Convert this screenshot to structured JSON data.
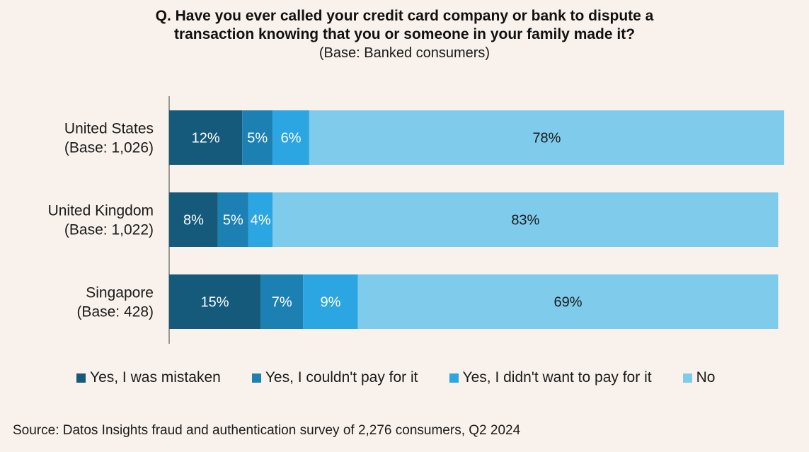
{
  "chart_data": {
    "type": "bar",
    "orientation": "horizontal",
    "stacked": true,
    "title_lines": [
      "Q. Have you ever called your credit card company or bank to dispute a",
      "transaction knowing that you or someone in your family made it?"
    ],
    "subtitle": "(Base: Banked consumers)",
    "categories": [
      {
        "name": "United States",
        "base": "(Base: 1,026)"
      },
      {
        "name": "United Kingdom",
        "base": "(Base: 1,022)"
      },
      {
        "name": "Singapore",
        "base": "(Base: 428)"
      }
    ],
    "series": [
      {
        "name": "Yes, I was mistaken",
        "color": "#155a7a",
        "values": [
          12,
          8,
          15
        ]
      },
      {
        "name": "Yes, I couldn't pay for it",
        "color": "#1d80b3",
        "values": [
          5,
          5,
          7
        ]
      },
      {
        "name": "Yes, I didn't want to pay for it",
        "color": "#2ba6e2",
        "values": [
          6,
          4,
          9
        ]
      },
      {
        "name": "No",
        "color": "#7ecbeb",
        "values": [
          78,
          83,
          69
        ]
      }
    ],
    "value_suffix": "%",
    "xlim": [
      0,
      101
    ],
    "legend_position": "bottom",
    "grid": false
  },
  "source": "Source: Datos Insights fraud and authentication survey of 2,276 consumers, Q2 2024"
}
